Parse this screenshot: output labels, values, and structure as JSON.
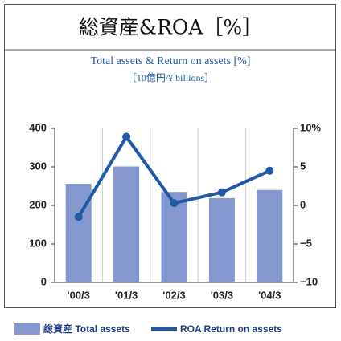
{
  "chart_data": {
    "type": "bar_line",
    "title": "総資産&ROA［%］",
    "subtitle": "Total assets & Return on assets [%]",
    "unit_label": "［10億円/¥ billions］",
    "categories": [
      "'00/3",
      "'01/3",
      "'02/3",
      "'03/3",
      "'04/3"
    ],
    "series": [
      {
        "name": "総資産 Total assets",
        "color": "#8497cf",
        "values": [
          256,
          301,
          235,
          219,
          240
        ]
      },
      {
        "name": "ROA Return on assets",
        "color": "#1f5aa6",
        "axis": "y2",
        "values": [
          -1.5,
          8.9,
          0.3,
          1.7,
          4.5
        ]
      }
    ],
    "ylim": [
      0,
      400
    ],
    "yticks": [
      0,
      100,
      200,
      300,
      400
    ],
    "y2lim": [
      -10,
      10
    ],
    "y2ticks": [
      {
        "value": -10,
        "label": "−10"
      },
      {
        "value": -5,
        "label": "−5"
      },
      0,
      5,
      {
        "value": 10,
        "label": "10%"
      }
    ],
    "grid": true
  }
}
